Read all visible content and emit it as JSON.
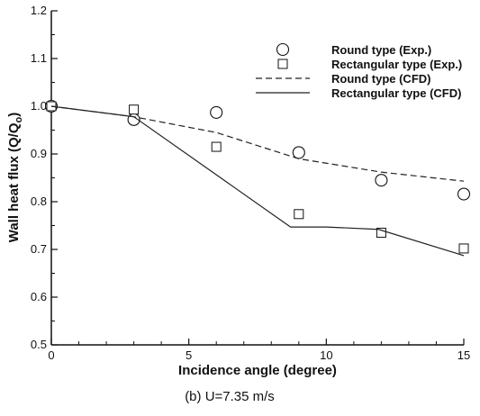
{
  "chart_data": {
    "type": "scatter",
    "xlabel": "Incidence angle (degree)",
    "ylabel": "Wall heat flux (Q/Q",
    "ylabel_sub": "o",
    "ylabel_close": ")",
    "caption": "(b)  U=7.35 m/s",
    "xlim": [
      0,
      15
    ],
    "ylim": [
      0.5,
      1.2
    ],
    "x_ticks": [
      "0",
      "5",
      "10",
      "15"
    ],
    "y_ticks": [
      "0.5",
      "0.6",
      "0.7",
      "0.8",
      "0.9",
      "1.0",
      "1.1",
      "1.2"
    ],
    "grid": false,
    "legend_position": "top-right",
    "series": [
      {
        "name": "Round type (Exp.)",
        "style": "circle",
        "x": [
          0,
          3,
          6,
          9,
          12,
          15
        ],
        "y": [
          1.0,
          0.972,
          0.987,
          0.903,
          0.845,
          0.816
        ]
      },
      {
        "name": "Rectangular type (Exp.)",
        "style": "square",
        "x": [
          0,
          3,
          6,
          9,
          12,
          15
        ],
        "y": [
          1.0,
          0.993,
          0.915,
          0.774,
          0.735,
          0.702
        ]
      },
      {
        "name": "Round type (CFD)",
        "style": "dashed",
        "x": [
          0,
          3,
          6,
          9,
          12,
          15
        ],
        "y": [
          1.0,
          0.978,
          0.945,
          0.89,
          0.862,
          0.843
        ]
      },
      {
        "name": "Rectangular type (CFD)",
        "style": "solid",
        "x": [
          0,
          3,
          8.7,
          10,
          11.9,
          15
        ],
        "y": [
          1.0,
          0.978,
          0.747,
          0.747,
          0.742,
          0.687
        ]
      }
    ]
  }
}
